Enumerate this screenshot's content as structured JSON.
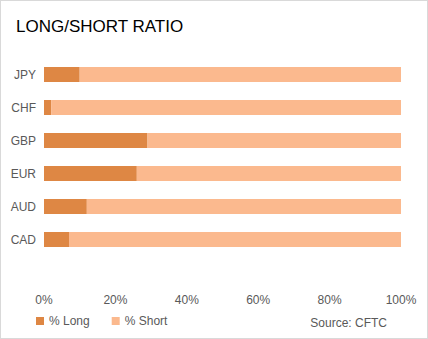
{
  "chart_data": {
    "type": "bar",
    "title": "LONG/SHORT RATIO",
    "orientation": "horizontal",
    "stacked": true,
    "grid": false,
    "legend": "bottom",
    "annotations": [
      "Source: CFTC"
    ],
    "categories": [
      "JPY",
      "CHF",
      "GBP",
      "EUR",
      "AUD",
      "CAD"
    ],
    "series": [
      {
        "name": "% Long",
        "color": "#de8744",
        "values": [
          10,
          2,
          29,
          26,
          12,
          7
        ]
      },
      {
        "name": "% Short",
        "color": "#fbb98e",
        "values": [
          90,
          98,
          71,
          74,
          88,
          93
        ]
      }
    ],
    "xlim": [
      0,
      100
    ],
    "xticks": [
      {
        "value": 0,
        "label": "0%"
      },
      {
        "value": 20,
        "label": "20%"
      },
      {
        "value": 40,
        "label": "40%"
      },
      {
        "value": 60,
        "label": "60%"
      },
      {
        "value": 80,
        "label": "80%"
      },
      {
        "value": 100,
        "label": "100%"
      }
    ]
  }
}
